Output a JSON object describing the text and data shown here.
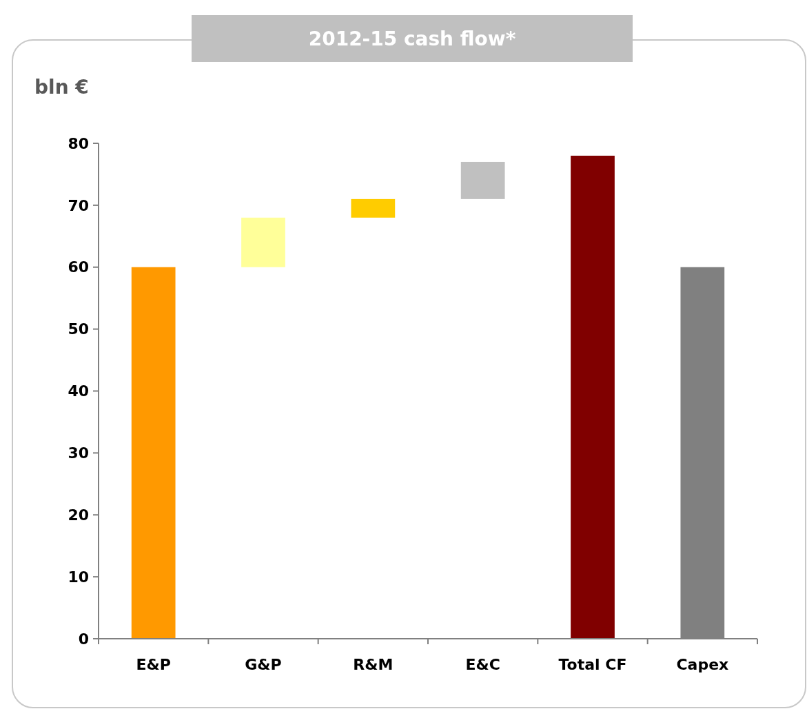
{
  "chart_data": {
    "type": "bar",
    "title": "2012-15 cash flow*",
    "ylabel": "bln €",
    "categories": [
      "E&P",
      "G&P",
      "R&M",
      "E&C",
      "Total CF",
      "Capex"
    ],
    "values": [
      60,
      8,
      3,
      6,
      78,
      60
    ],
    "base": [
      0,
      60,
      68,
      71,
      0,
      0
    ],
    "colors": [
      "#ff9900",
      "#ffff99",
      "#ffcc00",
      "#c0c0c0",
      "#800000",
      "#808080"
    ],
    "ylim": [
      0,
      80
    ],
    "yticks": [
      0,
      10,
      20,
      30,
      40,
      50,
      60,
      70,
      80
    ],
    "grid": false
  }
}
